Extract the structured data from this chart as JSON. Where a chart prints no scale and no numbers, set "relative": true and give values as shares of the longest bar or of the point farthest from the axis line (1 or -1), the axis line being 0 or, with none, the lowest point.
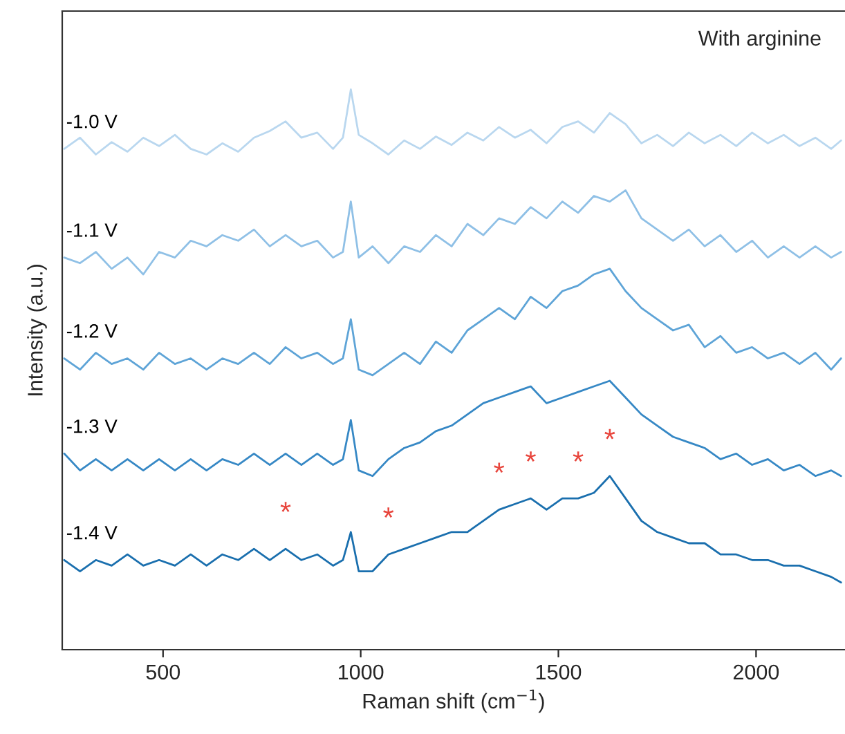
{
  "chart_data": {
    "type": "line",
    "relative": true,
    "xlabel": "Raman shift (cm$^{−1}$)",
    "ylabel": "Intensity (a.u.)",
    "xlim": [
      245,
      2225
    ],
    "xticks": [
      500,
      1000,
      1500,
      2000
    ],
    "grid": false,
    "legend": false,
    "x": [
      250,
      290,
      330,
      370,
      410,
      450,
      490,
      530,
      570,
      610,
      650,
      690,
      730,
      770,
      810,
      850,
      890,
      930,
      955,
      975,
      995,
      1030,
      1070,
      1110,
      1150,
      1190,
      1230,
      1270,
      1310,
      1350,
      1390,
      1430,
      1470,
      1510,
      1550,
      1590,
      1630,
      1670,
      1710,
      1750,
      1790,
      1830,
      1870,
      1910,
      1950,
      1990,
      2030,
      2070,
      2110,
      2150,
      2190,
      2215
    ],
    "series": [
      {
        "name": "-1.0 V",
        "color": "#b9d7ef",
        "values": [
          0.894,
          0.914,
          0.884,
          0.906,
          0.889,
          0.914,
          0.899,
          0.919,
          0.894,
          0.884,
          0.904,
          0.889,
          0.914,
          0.926,
          0.943,
          0.914,
          0.923,
          0.894,
          0.914,
          1.0,
          0.919,
          0.904,
          0.884,
          0.909,
          0.894,
          0.916,
          0.901,
          0.923,
          0.909,
          0.933,
          0.914,
          0.928,
          0.904,
          0.933,
          0.943,
          0.923,
          0.958,
          0.938,
          0.904,
          0.919,
          0.899,
          0.923,
          0.904,
          0.919,
          0.899,
          0.923,
          0.904,
          0.919,
          0.899,
          0.914,
          0.894,
          0.909
        ]
      },
      {
        "name": "-1.1 V",
        "color": "#8fc0e6",
        "values": [
          0.7,
          0.69,
          0.71,
          0.68,
          0.7,
          0.67,
          0.71,
          0.7,
          0.73,
          0.72,
          0.74,
          0.73,
          0.75,
          0.72,
          0.74,
          0.72,
          0.73,
          0.7,
          0.71,
          0.8,
          0.7,
          0.72,
          0.69,
          0.72,
          0.71,
          0.74,
          0.72,
          0.76,
          0.74,
          0.77,
          0.76,
          0.79,
          0.77,
          0.8,
          0.78,
          0.81,
          0.8,
          0.82,
          0.77,
          0.75,
          0.73,
          0.75,
          0.72,
          0.74,
          0.71,
          0.73,
          0.7,
          0.72,
          0.7,
          0.72,
          0.7,
          0.71
        ]
      },
      {
        "name": "-1.2 V",
        "color": "#5ea4d7",
        "values": [
          0.52,
          0.5,
          0.53,
          0.51,
          0.52,
          0.5,
          0.53,
          0.51,
          0.52,
          0.5,
          0.52,
          0.51,
          0.53,
          0.51,
          0.54,
          0.52,
          0.53,
          0.51,
          0.52,
          0.59,
          0.5,
          0.49,
          0.51,
          0.53,
          0.51,
          0.55,
          0.53,
          0.57,
          0.59,
          0.61,
          0.59,
          0.63,
          0.61,
          0.64,
          0.65,
          0.67,
          0.68,
          0.64,
          0.61,
          0.59,
          0.57,
          0.58,
          0.54,
          0.56,
          0.53,
          0.54,
          0.52,
          0.53,
          0.51,
          0.53,
          0.5,
          0.52
        ]
      },
      {
        "name": "-1.3 V",
        "color": "#3688c5",
        "values": [
          0.35,
          0.32,
          0.34,
          0.32,
          0.34,
          0.32,
          0.34,
          0.32,
          0.34,
          0.32,
          0.34,
          0.33,
          0.35,
          0.33,
          0.35,
          0.33,
          0.35,
          0.33,
          0.34,
          0.41,
          0.32,
          0.31,
          0.34,
          0.36,
          0.37,
          0.39,
          0.4,
          0.42,
          0.44,
          0.45,
          0.46,
          0.47,
          0.44,
          0.45,
          0.46,
          0.47,
          0.48,
          0.45,
          0.42,
          0.4,
          0.38,
          0.37,
          0.36,
          0.34,
          0.35,
          0.33,
          0.34,
          0.32,
          0.33,
          0.31,
          0.32,
          0.31
        ]
      },
      {
        "name": "-1.4 V",
        "color": "#1a6fae",
        "values": [
          0.16,
          0.14,
          0.16,
          0.15,
          0.17,
          0.15,
          0.16,
          0.15,
          0.17,
          0.15,
          0.17,
          0.16,
          0.18,
          0.16,
          0.18,
          0.16,
          0.17,
          0.15,
          0.16,
          0.21,
          0.14,
          0.14,
          0.17,
          0.18,
          0.19,
          0.2,
          0.21,
          0.21,
          0.23,
          0.25,
          0.26,
          0.27,
          0.25,
          0.27,
          0.27,
          0.28,
          0.31,
          0.27,
          0.23,
          0.21,
          0.2,
          0.19,
          0.19,
          0.17,
          0.17,
          0.16,
          0.16,
          0.15,
          0.15,
          0.14,
          0.13,
          0.12
        ]
      }
    ],
    "annotations": [
      "With arginine",
      {
        "text": "*",
        "x": 810,
        "y": 0.18
      },
      {
        "text": "*",
        "x": 1070,
        "y": 0.17
      },
      {
        "text": "*",
        "x": 1350,
        "y": 0.25
      },
      {
        "text": "*",
        "x": 1430,
        "y": 0.27
      },
      {
        "text": "*",
        "x": 1550,
        "y": 0.27
      },
      {
        "text": "*",
        "x": 1630,
        "y": 0.31
      }
    ]
  }
}
